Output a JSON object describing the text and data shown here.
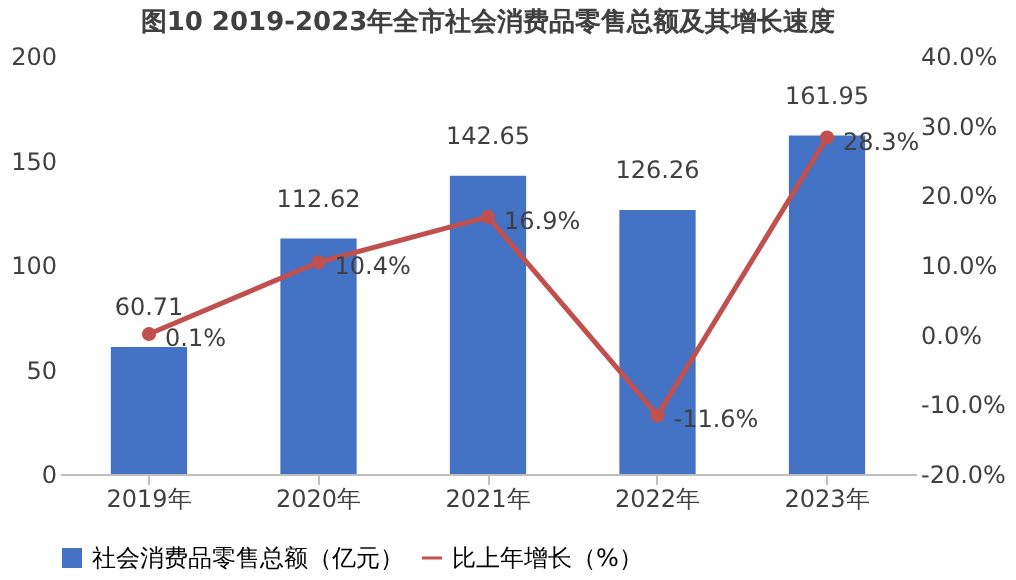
{
  "chart_data": {
    "type": "bar",
    "title": "图10 2019-2023年全市社会消费品零售总额及其增长速度",
    "categories": [
      "2019年",
      "2020年",
      "2021年",
      "2022年",
      "2023年"
    ],
    "series": [
      {
        "name": "社会消费品零售总额（亿元）",
        "color": "#4472c4",
        "values": [
          60.71,
          112.62,
          142.65,
          126.26,
          161.95
        ],
        "value_labels": [
          "60.71",
          "112.62",
          "142.65",
          "126.26",
          "161.95"
        ]
      },
      {
        "name": "比上年增长（%）",
        "type": "line",
        "axis": "y2",
        "color": "#c0504d",
        "values": [
          0.1,
          10.4,
          16.9,
          -11.6,
          28.3
        ],
        "value_labels": [
          "0.1%",
          "10.4%",
          "16.9%",
          "-11.6%",
          "28.3%"
        ]
      }
    ],
    "ylim": [
      0,
      200
    ],
    "yticks": [
      0,
      50,
      100,
      150,
      200
    ],
    "y2lim": [
      -20,
      40
    ],
    "y2ticks": [
      {
        "value": -20,
        "label": "-20.0%"
      },
      {
        "value": -10,
        "label": "-10.0%"
      },
      {
        "value": 0,
        "label": "0.0%"
      },
      {
        "value": 10,
        "label": "10.0%"
      },
      {
        "value": 20,
        "label": "20.0%"
      },
      {
        "value": 30,
        "label": "30.0%"
      },
      {
        "value": 40,
        "label": "40.0%"
      }
    ],
    "grid": false,
    "legend": "bottom",
    "marker": "circle",
    "line_style": "solid"
  }
}
